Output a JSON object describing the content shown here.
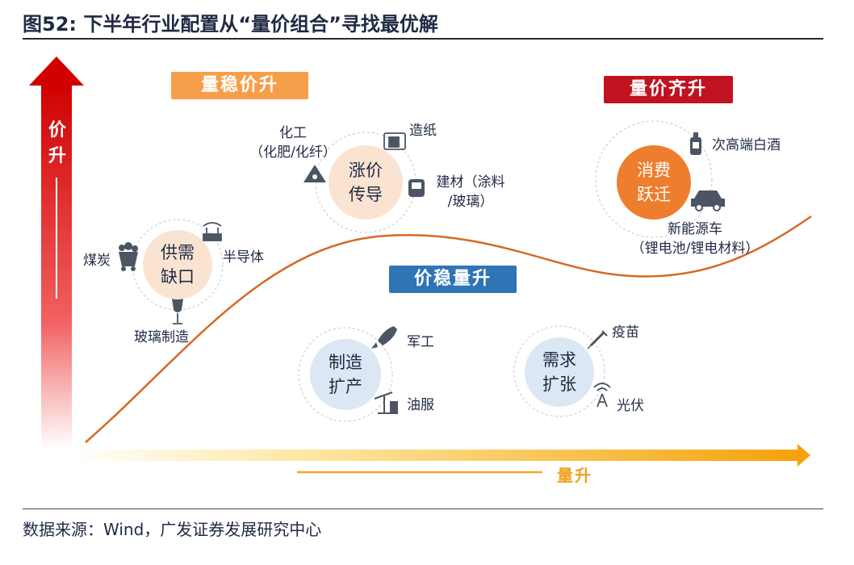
{
  "header": {
    "figure": "图52:",
    "title": "下半年行业配置从“量价组合”寻找最优解"
  },
  "axes": {
    "y_label": "价升",
    "x_label": "量升"
  },
  "tags": {
    "volume_stable_price_up": "量稳价升",
    "volume_price_up": "量价齐升",
    "price_stable_volume_up": "价稳量升"
  },
  "clusters": {
    "supply_shortage": {
      "center_line1": "供需",
      "center_line2": "缺口",
      "items": [
        "煤炭",
        "半导体",
        "玻璃制造"
      ]
    },
    "price_transmission": {
      "center_line1": "涨价",
      "center_line2": "传导",
      "chem_line1": "化工",
      "chem_line2": "（化肥/化纤）",
      "paper": "造纸",
      "building_line1": "建材（涂料",
      "building_line2": "/玻璃）"
    },
    "consumption_upgrade": {
      "center_line1": "消费",
      "center_line2": "跃迁",
      "liquor": "次高端白酒",
      "nev_line1": "新能源车",
      "nev_line2": "（锂电池/锂电材料）"
    },
    "manufacturing_expansion": {
      "center_line1": "制造",
      "center_line2": "扩产",
      "items": [
        "军工",
        "油服"
      ]
    },
    "demand_expansion": {
      "center_line1": "需求",
      "center_line2": "扩张",
      "items": [
        "疫苗",
        "光伏"
      ]
    }
  },
  "colors": {
    "accent_red": "#c1121f",
    "accent_orange": "#f59f4a",
    "accent_blue": "#2e75b6",
    "curve": "#d46a25",
    "navy_text": "#1f2a44"
  },
  "source": "数据来源：Wind，广发证券发展研究中心"
}
